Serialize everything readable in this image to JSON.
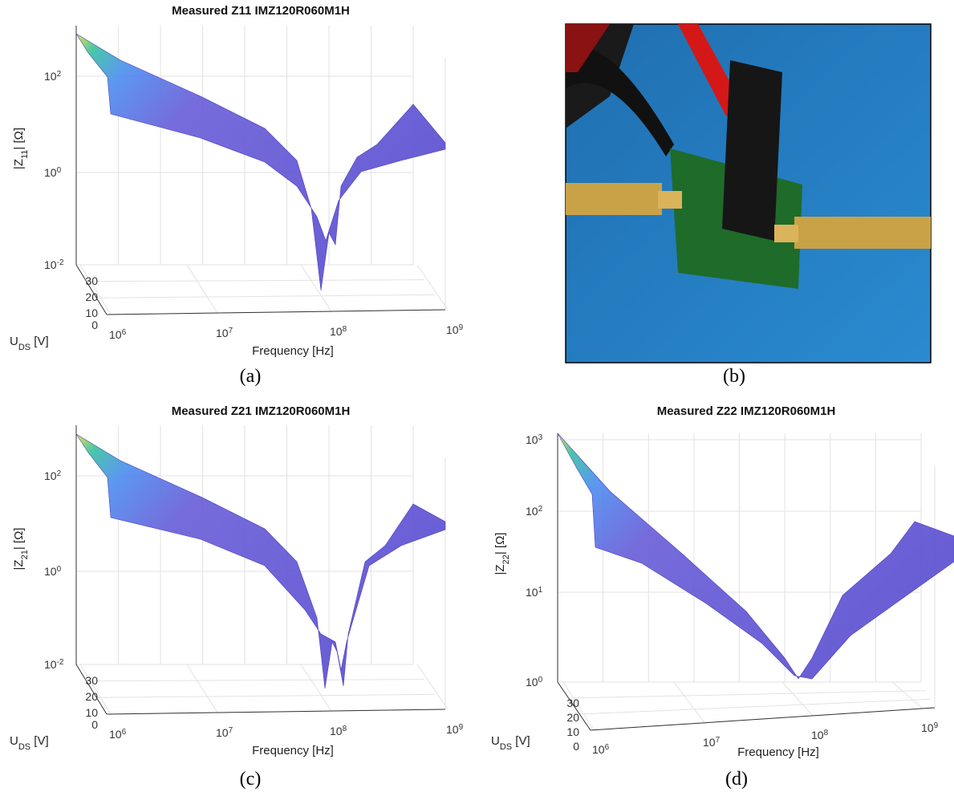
{
  "panels": [
    {
      "title": "Measured Z11 IMZ120R060M1H",
      "z_label": {
        "text": "|Z",
        "sub": "11",
        "tail": "| [Ω]"
      },
      "z_ticks": [
        {
          "base": "10",
          "exp": "2"
        },
        {
          "base": "10",
          "exp": "0"
        },
        {
          "base": "10",
          "exp": "-2"
        }
      ],
      "y_label": {
        "text": "U",
        "sub": "DS",
        "tail": " [V]"
      },
      "y_ticks": [
        "30",
        "20",
        "10",
        "0"
      ],
      "x_label": "Frequency [Hz]",
      "x_ticks": [
        {
          "base": "10",
          "exp": "6"
        },
        {
          "base": "10",
          "exp": "7"
        },
        {
          "base": "10",
          "exp": "8"
        },
        {
          "base": "10",
          "exp": "9"
        }
      ],
      "caption": "(a)"
    },
    {
      "title": "Measured Z21 IMZ120R060M1H",
      "z_label": {
        "text": "|Z",
        "sub": "21",
        "tail": "| [Ω]"
      },
      "z_ticks": [
        {
          "base": "10",
          "exp": "2"
        },
        {
          "base": "10",
          "exp": "0"
        },
        {
          "base": "10",
          "exp": "-2"
        }
      ],
      "y_label": {
        "text": "U",
        "sub": "DS",
        "tail": " [V]"
      },
      "y_ticks": [
        "30",
        "20",
        "10",
        "0"
      ],
      "x_label": "Frequency [Hz]",
      "x_ticks": [
        {
          "base": "10",
          "exp": "6"
        },
        {
          "base": "10",
          "exp": "7"
        },
        {
          "base": "10",
          "exp": "8"
        },
        {
          "base": "10",
          "exp": "9"
        }
      ],
      "caption": "(c)"
    },
    {
      "title": "Measured Z22 IMZ120R060M1H",
      "z_label": {
        "text": "|Z",
        "sub": "22",
        "tail": "| [Ω]"
      },
      "z_ticks": [
        {
          "base": "10",
          "exp": "3"
        },
        {
          "base": "10",
          "exp": "2"
        },
        {
          "base": "10",
          "exp": "1"
        },
        {
          "base": "10",
          "exp": "0"
        }
      ],
      "y_label": {
        "text": "U",
        "sub": "DS",
        "tail": " [V]"
      },
      "y_ticks": [
        "30",
        "20",
        "10",
        "0"
      ],
      "x_label": "Frequency [Hz]",
      "x_ticks": [
        {
          "base": "10",
          "exp": "6"
        },
        {
          "base": "10",
          "exp": "7"
        },
        {
          "base": "10",
          "exp": "8"
        },
        {
          "base": "10",
          "exp": "9"
        }
      ],
      "caption": "(d)"
    }
  ],
  "photo": {
    "caption": "(b)"
  }
}
